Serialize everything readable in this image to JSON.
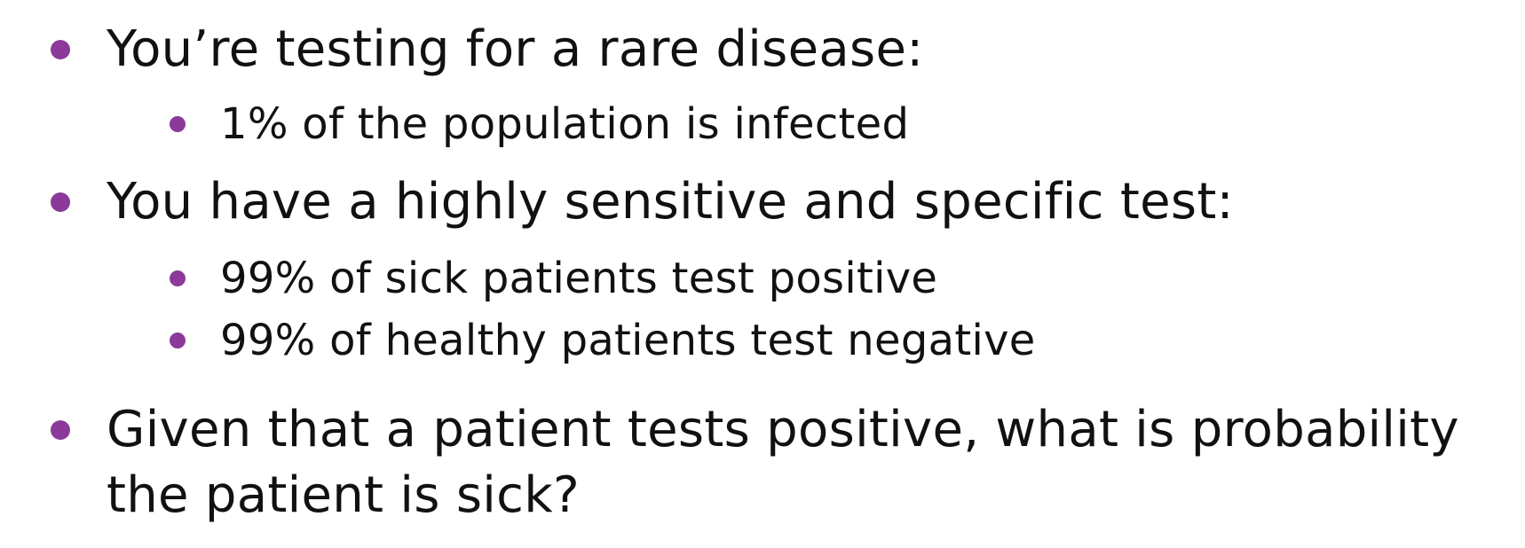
{
  "theme": {
    "bullet_color": "#8b3a9a",
    "text_color": "#111111"
  },
  "bullets": [
    {
      "text": "You’re testing for a rare disease:",
      "sub": [
        "1% of the population is infected"
      ]
    },
    {
      "text": "You have a highly sensitive and specific test:",
      "sub": [
        "99% of sick patients test positive",
        "99% of healthy patients test negative"
      ]
    },
    {
      "text": "Given that a patient tests positive, what is probability the patient is sick?",
      "sub": []
    }
  ]
}
